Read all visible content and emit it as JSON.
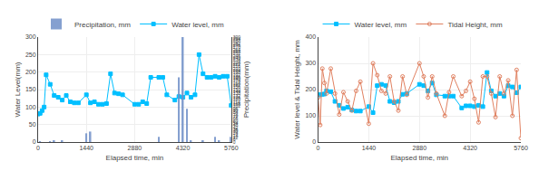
{
  "chart_data": [
    {
      "type": "line",
      "xlabel": "Elapsed time, min",
      "ylabel": "Water Level(mm)",
      "y2label": "Precipitation(mm)",
      "xlim": [
        0,
        5760
      ],
      "xticks": [
        0,
        1440,
        2880,
        4320,
        5760
      ],
      "ylim": [
        0,
        300
      ],
      "yticks": [
        0,
        50,
        100,
        150,
        200,
        250,
        300
      ],
      "y2lim": [
        0,
        300
      ],
      "y2ticks": [
        0,
        6,
        12,
        18,
        24,
        30,
        36,
        42,
        48,
        54,
        60,
        66,
        72,
        78,
        84,
        90,
        96,
        102,
        108,
        114,
        120,
        126,
        132,
        138,
        144,
        150,
        156,
        162,
        168,
        174,
        180,
        186,
        192,
        198,
        204,
        210,
        216,
        222,
        228,
        234,
        240,
        246,
        252,
        258,
        264,
        270,
        276,
        282,
        288,
        294,
        300
      ],
      "grid": true,
      "legend": "upper left",
      "series": [
        {
          "name": "Precipitation, mm",
          "type": "bar",
          "axis": "y2",
          "color": "#7090c8",
          "x": [
            60,
            120,
            180,
            240,
            360,
            480,
            600,
            720,
            840,
            960,
            1080,
            1200,
            1440,
            1560,
            1680,
            1800,
            1920,
            2040,
            2160,
            2280,
            2400,
            2520,
            2880,
            3000,
            3120,
            3240,
            3360,
            3600,
            3720,
            3840,
            4080,
            4200,
            4320,
            4440,
            4560,
            4680,
            4800,
            4920,
            5040,
            5160,
            5280,
            5400,
            5520,
            5640,
            5760
          ],
          "values": [
            1.5,
            0,
            0,
            0,
            1.5,
            3.5,
            0,
            3,
            0,
            0,
            0,
            0,
            25,
            30,
            0,
            0,
            0,
            0,
            0,
            0,
            0,
            0,
            0,
            0,
            0,
            0,
            0,
            15,
            0,
            0,
            0,
            185,
            300,
            95,
            5,
            0,
            0,
            5,
            0,
            0,
            15,
            5,
            0,
            0,
            15
          ]
        },
        {
          "name": "Water level, mm",
          "type": "line",
          "color": "#00bfff",
          "marker": "square",
          "x": [
            0,
            60,
            120,
            180,
            240,
            360,
            480,
            600,
            720,
            840,
            960,
            1080,
            1200,
            1440,
            1560,
            1680,
            1800,
            1920,
            2040,
            2160,
            2280,
            2400,
            2520,
            2880,
            3000,
            3120,
            3240,
            3360,
            3600,
            3720,
            3840,
            4080,
            4200,
            4320,
            4440,
            4560,
            4680,
            4800,
            4920,
            5040,
            5160,
            5280,
            5400,
            5520,
            5640,
            5760
          ],
          "values": [
            80,
            82,
            90,
            100,
            192,
            165,
            133,
            128,
            120,
            133,
            115,
            112,
            112,
            135,
            112,
            115,
            108,
            108,
            110,
            195,
            140,
            138,
            135,
            108,
            108,
            115,
            110,
            185,
            185,
            185,
            135,
            120,
            130,
            128,
            140,
            128,
            135,
            250,
            195,
            185,
            185,
            188,
            185,
            188,
            188,
            105
          ]
        }
      ]
    },
    {
      "type": "line",
      "xlabel": "Elapsed time, min",
      "ylabel": "Water level & Tidal Height, mm",
      "xlim": [
        0,
        5760
      ],
      "xticks": [
        0,
        1440,
        2880,
        4320,
        5760
      ],
      "ylim": [
        0,
        400
      ],
      "yticks": [
        0,
        100,
        200,
        300,
        400
      ],
      "grid": true,
      "legend": "upper left",
      "series": [
        {
          "name": "Water level, mm",
          "type": "line",
          "color": "#00bfff",
          "marker": "square",
          "x": [
            0,
            60,
            120,
            180,
            240,
            360,
            480,
            600,
            720,
            840,
            960,
            1080,
            1200,
            1440,
            1560,
            1680,
            1800,
            1920,
            2040,
            2160,
            2280,
            2400,
            2520,
            2880,
            3000,
            3120,
            3240,
            3360,
            3600,
            3720,
            3840,
            4080,
            4200,
            4320,
            4440,
            4560,
            4680,
            4800,
            4920,
            5040,
            5160,
            5280,
            5400,
            5520,
            5640,
            5760
          ],
          "values": [
            180,
            180,
            182,
            183,
            195,
            192,
            155,
            140,
            128,
            133,
            122,
            118,
            118,
            135,
            112,
            215,
            220,
            215,
            155,
            150,
            155,
            182,
            185,
            220,
            215,
            195,
            225,
            180,
            175,
            175,
            175,
            130,
            138,
            138,
            135,
            140,
            135,
            265,
            195,
            175,
            185,
            175,
            215,
            210,
            188,
            210
          ]
        },
        {
          "name": "Tidal Height, mm",
          "type": "line",
          "color": "#e08060",
          "marker": "circle-open",
          "x": [
            0,
            60,
            120,
            180,
            240,
            360,
            480,
            600,
            720,
            840,
            960,
            1080,
            1200,
            1440,
            1560,
            1680,
            1800,
            1920,
            2040,
            2160,
            2280,
            2400,
            2520,
            2880,
            3000,
            3120,
            3240,
            3360,
            3600,
            3720,
            3840,
            4080,
            4200,
            4320,
            4440,
            4560,
            4680,
            4800,
            4920,
            5040,
            5160,
            5280,
            5400,
            5520,
            5640,
            5760
          ],
          "values": [
            170,
            65,
            280,
            225,
            185,
            280,
            185,
            105,
            190,
            155,
            120,
            195,
            230,
            70,
            300,
            255,
            195,
            185,
            250,
            155,
            120,
            250,
            180,
            300,
            250,
            170,
            250,
            185,
            100,
            190,
            250,
            175,
            195,
            230,
            165,
            75,
            250,
            250,
            185,
            95,
            250,
            185,
            235,
            100,
            275,
            15
          ]
        }
      ]
    }
  ]
}
